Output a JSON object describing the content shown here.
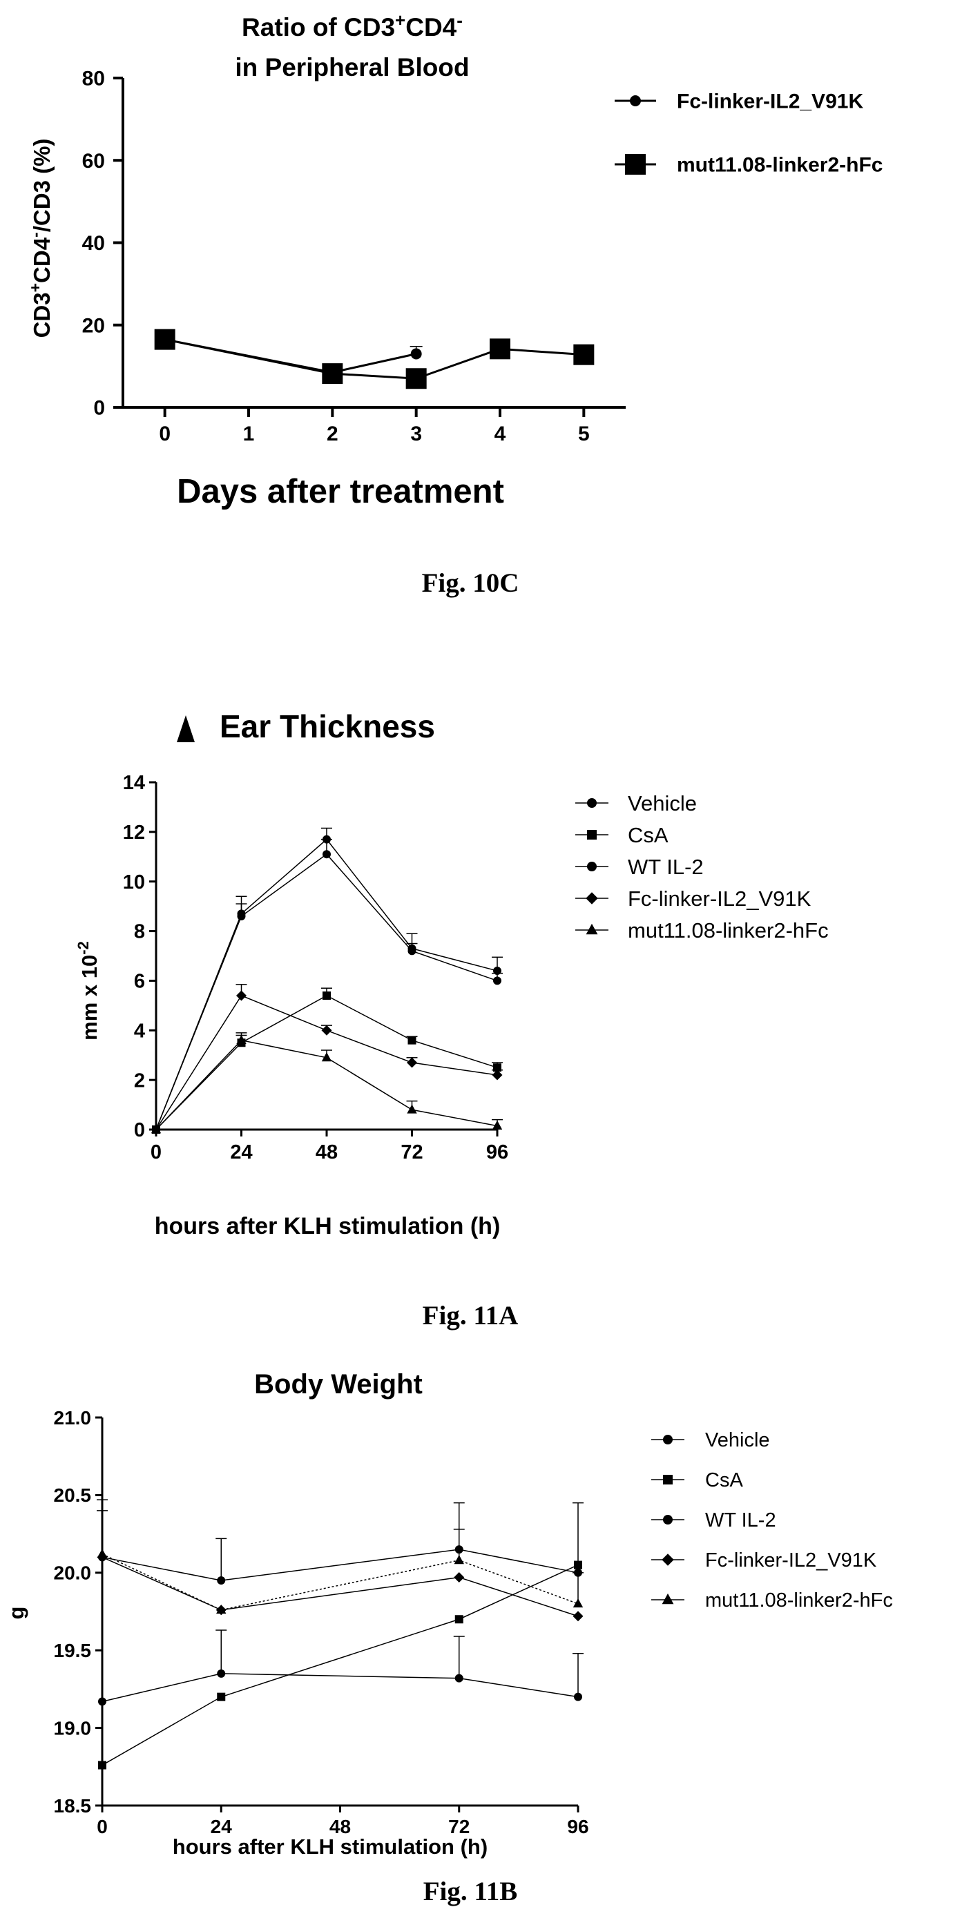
{
  "figures": [
    {
      "caption": "Fig. 10C"
    },
    {
      "caption": "Fig. 11A"
    },
    {
      "caption": "Fig. 11B"
    }
  ],
  "chart_data": [
    {
      "type": "line",
      "title_lines": [
        "Ratio of CD3",
        "in Peripheral Blood"
      ],
      "title_parts": {
        "line1_main": "Ratio of CD3",
        "line1_sup1": "+",
        "line1_mid": "CD4",
        "line1_sup2": "-"
      },
      "ylabel_parts": {
        "a": "CD3",
        "a_sup": "+",
        "b": "CD4",
        "b_sup": "-",
        "c": "/CD3 (%)"
      },
      "xlabel": "Days after treatment",
      "x_ticks": [
        0,
        1,
        2,
        3,
        4,
        5
      ],
      "y_ticks": [
        0,
        20,
        40,
        60,
        80
      ],
      "xlim": [
        -0.5,
        5.5
      ],
      "ylim": [
        0,
        80
      ],
      "legend_position": "top-right",
      "series": [
        {
          "name": "Fc-linker-IL2_V91K",
          "marker": "circle",
          "x": [
            0,
            2,
            3
          ],
          "values": [
            16.5,
            8.5,
            13
          ],
          "err": [
            0,
            0,
            1.8
          ]
        },
        {
          "name": "mut11.08-linker2-hFc",
          "marker": "square",
          "x": [
            0,
            2,
            3,
            4,
            5
          ],
          "values": [
            16.5,
            8.2,
            7.0,
            14.2,
            12.8
          ],
          "err": [
            0,
            0,
            0,
            0,
            0
          ]
        }
      ]
    },
    {
      "type": "line",
      "title": "Ear Thickness",
      "title_marker": "triangle",
      "ylabel_parts": {
        "a": "mm x 10",
        "a_sup": "-2"
      },
      "xlabel": "hours after KLH stimulation (h)",
      "x_ticks": [
        0,
        24,
        48,
        72,
        96
      ],
      "y_ticks": [
        0,
        2,
        4,
        6,
        8,
        10,
        12,
        14
      ],
      "xlim": [
        0,
        96
      ],
      "ylim": [
        0,
        14
      ],
      "legend_position": "top-right",
      "series": [
        {
          "name": "Vehicle",
          "marker": "circle",
          "x": [
            0,
            24,
            48,
            72,
            96
          ],
          "values": [
            0,
            8.7,
            11.7,
            7.3,
            6.4
          ],
          "err": [
            0,
            0.7,
            0.45,
            0.6,
            0.55
          ]
        },
        {
          "name": "CsA",
          "marker": "square",
          "x": [
            0,
            24,
            48,
            72,
            96
          ],
          "values": [
            0,
            3.5,
            5.4,
            3.6,
            2.5
          ],
          "err": [
            0,
            0.3,
            0.3,
            0.15,
            0.2
          ]
        },
        {
          "name": "WT IL-2",
          "marker": "circle",
          "x": [
            0,
            24,
            48,
            72,
            96
          ],
          "values": [
            0,
            8.6,
            11.1,
            7.2,
            6.0
          ],
          "err": [
            0,
            0.5,
            0.6,
            0.3,
            0.3
          ]
        },
        {
          "name": "Fc-linker-IL2_V91K",
          "marker": "diamond",
          "x": [
            0,
            24,
            48,
            72,
            96
          ],
          "values": [
            0,
            5.4,
            4.0,
            2.7,
            2.2
          ],
          "err": [
            0,
            0.45,
            0.2,
            0.2,
            0.2
          ]
        },
        {
          "name": "mut11.08-linker2-hFc",
          "marker": "triangle",
          "x": [
            0,
            24,
            48,
            72,
            96
          ],
          "values": [
            0,
            3.6,
            2.9,
            0.8,
            0.15
          ],
          "err": [
            0,
            0.3,
            0.3,
            0.35,
            0.25
          ]
        }
      ]
    },
    {
      "type": "line",
      "title": "Body Weight",
      "ylabel": "g",
      "xlabel": "hours after KLH stimulation (h)",
      "x_ticks": [
        0,
        24,
        48,
        72,
        96
      ],
      "y_ticks": [
        18.5,
        19.0,
        19.5,
        20.0,
        20.5,
        21.0
      ],
      "y_tick_labels": [
        "18.5",
        "19.0",
        "19.5",
        "20.0",
        "20.5",
        "21.0"
      ],
      "xlim": [
        0,
        96
      ],
      "ylim": [
        18.5,
        21.0
      ],
      "legend_position": "top-right",
      "series": [
        {
          "name": "Vehicle",
          "marker": "circle",
          "x": [
            0,
            24,
            72,
            96
          ],
          "values": [
            20.1,
            19.95,
            20.15,
            20.0
          ],
          "err": [
            0.3,
            0.27,
            0.3,
            0.45
          ]
        },
        {
          "name": "CsA",
          "marker": "square",
          "x": [
            0,
            24,
            72,
            96
          ],
          "values": [
            18.76,
            19.2,
            19.7,
            20.05
          ],
          "err": [
            0,
            0,
            0,
            0
          ]
        },
        {
          "name": "WT IL-2",
          "marker": "circle",
          "x": [
            0,
            24,
            72,
            96
          ],
          "values": [
            19.17,
            19.35,
            19.32,
            19.2
          ],
          "err": [
            0,
            0.28,
            0.27,
            0.28
          ]
        },
        {
          "name": "Fc-linker-IL2_V91K",
          "marker": "diamond",
          "x": [
            0,
            24,
            72,
            96
          ],
          "values": [
            20.1,
            19.76,
            19.97,
            19.72
          ],
          "err": [
            0,
            0,
            0,
            0
          ]
        },
        {
          "name": "mut11.08-linker2-hFc",
          "marker": "triangle",
          "x": [
            0,
            24,
            72,
            96
          ],
          "values": [
            20.12,
            19.76,
            20.08,
            19.8
          ],
          "err": [
            0.35,
            0,
            0.2,
            0.2
          ]
        }
      ]
    }
  ]
}
